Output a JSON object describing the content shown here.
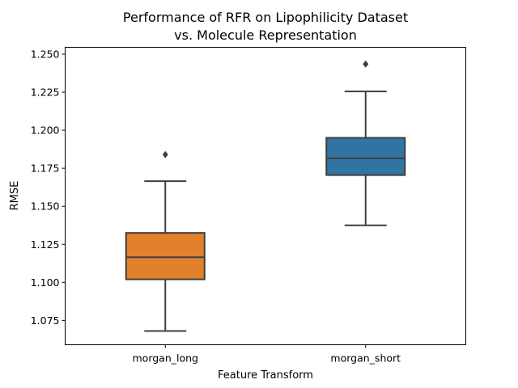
{
  "chart_data": {
    "type": "box",
    "title_lines": [
      "Performance of RFR on Lipophilicity Dataset",
      "vs. Molecule Representation"
    ],
    "xlabel": "Feature Transform",
    "ylabel": "RMSE",
    "ylim": [
      1.059,
      1.2545
    ],
    "yticks": [
      1.075,
      1.1,
      1.125,
      1.15,
      1.175,
      1.2,
      1.225,
      1.25
    ],
    "ytick_labels": [
      "1.075",
      "1.100",
      "1.125",
      "1.150",
      "1.175",
      "1.200",
      "1.225",
      "1.250"
    ],
    "grid": false,
    "categories": [
      "morgan_long",
      "morgan_short"
    ],
    "boxes": [
      {
        "category": "morgan_long",
        "whisker_low": 1.068,
        "q1": 1.102,
        "median": 1.1165,
        "q3": 1.1325,
        "whisker_high": 1.1665,
        "outliers": [
          1.184
        ],
        "color": "#e1812c"
      },
      {
        "category": "morgan_short",
        "whisker_low": 1.1375,
        "q1": 1.1705,
        "median": 1.1815,
        "q3": 1.195,
        "whisker_high": 1.2255,
        "outliers": [
          1.2435
        ],
        "color": "#3274a1"
      }
    ]
  }
}
